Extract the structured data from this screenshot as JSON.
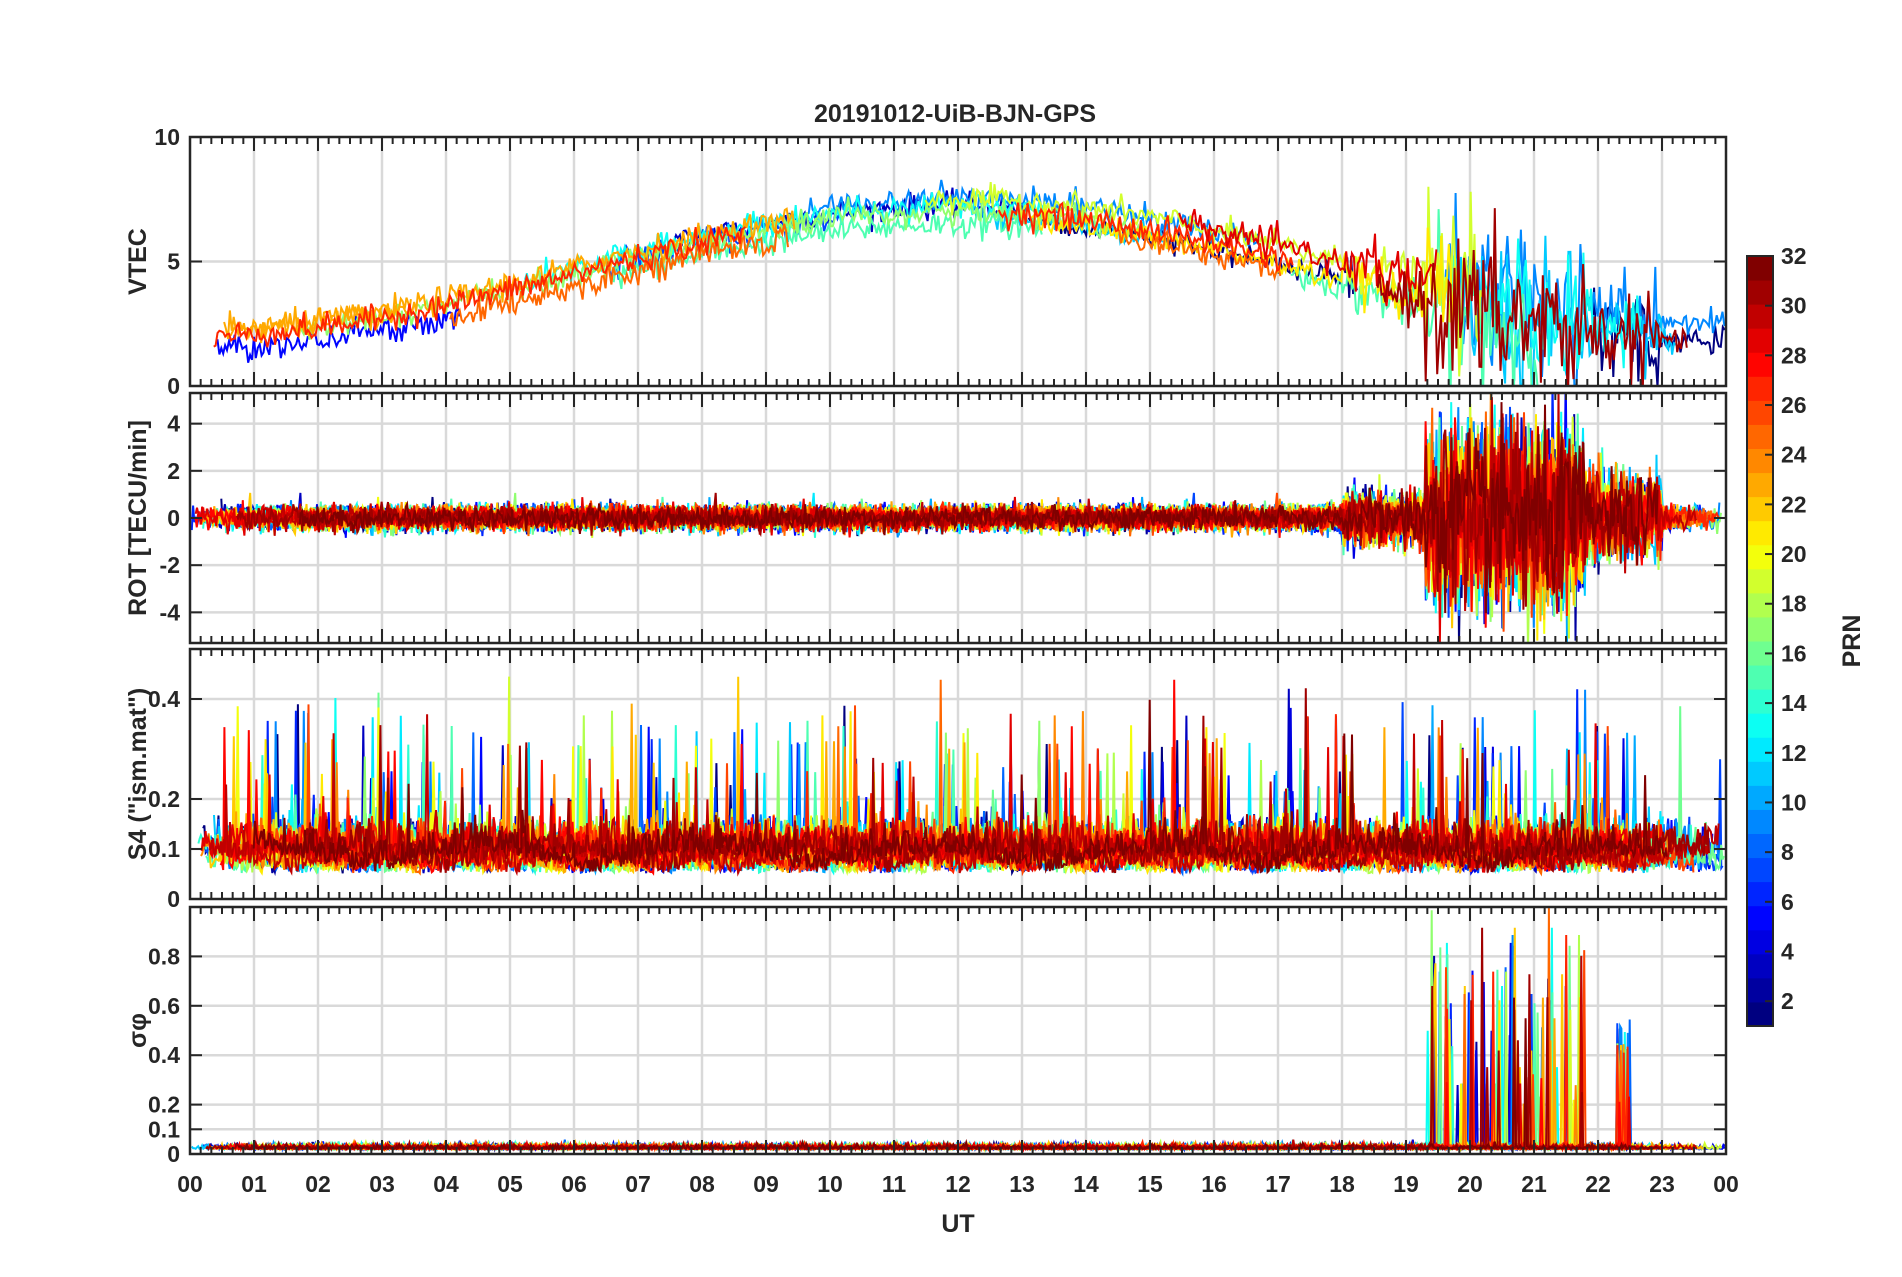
{
  "title": "20191012-UiB-BJN-GPS",
  "x_axis": {
    "label": "UT",
    "range": [
      0,
      24
    ],
    "ticks": [
      0,
      1,
      2,
      3,
      4,
      5,
      6,
      7,
      8,
      9,
      10,
      11,
      12,
      13,
      14,
      15,
      16,
      17,
      18,
      19,
      20,
      21,
      22,
      23,
      24
    ],
    "tick_labels": [
      "00",
      "01",
      "02",
      "03",
      "04",
      "05",
      "06",
      "07",
      "08",
      "09",
      "10",
      "11",
      "12",
      "13",
      "14",
      "15",
      "16",
      "17",
      "18",
      "19",
      "20",
      "21",
      "22",
      "23",
      "00"
    ]
  },
  "colorbar": {
    "label": "PRN",
    "range": [
      1,
      32
    ],
    "colormap": "jet",
    "ticks": [
      2,
      4,
      6,
      8,
      10,
      12,
      14,
      16,
      18,
      20,
      22,
      24,
      26,
      28,
      30,
      32
    ],
    "tick_labels": [
      "2",
      "4",
      "6",
      "8",
      "10",
      "12",
      "14",
      "16",
      "18",
      "20",
      "22",
      "24",
      "26",
      "28",
      "30",
      "32"
    ]
  },
  "chart_data": [
    {
      "type": "line",
      "panel": "VTEC",
      "ylabel": "VTEC",
      "ylim": [
        0,
        10
      ],
      "yticks": [
        0,
        5,
        10
      ],
      "ytick_labels": [
        "0",
        "5",
        "10"
      ],
      "grid": true,
      "series_color_by": "PRN",
      "active_period": "whole day; strongest variability 19-22 UT",
      "typical_range": [
        2,
        9
      ]
    },
    {
      "type": "line",
      "panel": "ROT",
      "ylabel": "ROT [TECU/min]",
      "ylim": [
        -5.3,
        5.3
      ],
      "yticks": [
        -4,
        -2,
        0,
        2,
        4
      ],
      "ytick_labels": [
        "-4",
        "-2",
        "0",
        "2",
        "4"
      ],
      "grid": true,
      "series_color_by": "PRN",
      "active_period": "19-22 UT",
      "typical_range": [
        -5,
        5
      ]
    },
    {
      "type": "line",
      "panel": "S4",
      "ylabel": "S4 (\"ism.mat\")",
      "ylim": [
        0,
        0.5
      ],
      "yticks": [
        0,
        0.1,
        0.2,
        0.4
      ],
      "ytick_labels": [
        "0",
        "0.1",
        "0.2",
        "0.4"
      ],
      "grid": true,
      "series_color_by": "PRN",
      "typical_range": [
        0.03,
        0.45
      ]
    },
    {
      "type": "line",
      "panel": "sigma_phi",
      "ylabel": "σφ",
      "ylim": [
        0,
        1
      ],
      "yticks": [
        0,
        0.1,
        0.2,
        0.4,
        0.6,
        0.8
      ],
      "ytick_labels": [
        "0",
        "0.1",
        "0.2",
        "0.4",
        "0.6",
        "0.8"
      ],
      "grid": true,
      "series_color_by": "PRN",
      "active_period": "19.3-21.5 UT, peak near 22.4 UT",
      "typical_range": [
        0,
        1
      ]
    }
  ]
}
